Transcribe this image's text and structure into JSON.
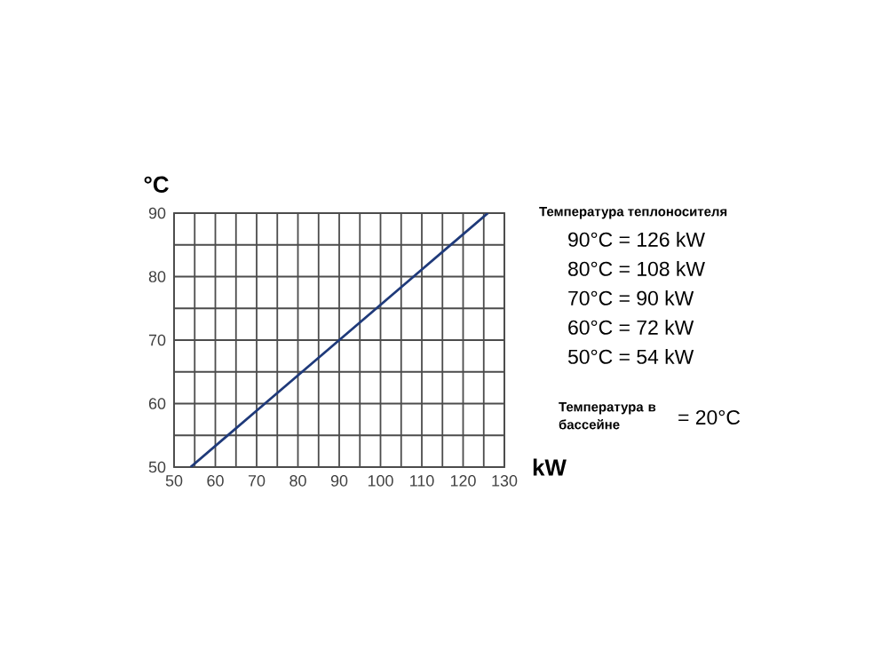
{
  "chart_data": {
    "type": "line",
    "xlabel": "kW",
    "ylabel": "°C",
    "x": [
      54,
      72,
      90,
      108,
      126
    ],
    "series": [
      {
        "color": "#1f3a7a",
        "values": [
          50,
          60,
          70,
          80,
          90
        ]
      }
    ],
    "xlim": [
      50,
      130
    ],
    "ylim": [
      50,
      90
    ],
    "xticks": [
      50,
      60,
      70,
      80,
      90,
      100,
      110,
      120,
      130
    ],
    "yticks": [
      50,
      60,
      70,
      80,
      90
    ],
    "grid": true,
    "marker": "none",
    "line_style": "solid",
    "annotations": [
      "Температура теплоносителя",
      "90°C = 126 kW",
      "80°C = 108 kW",
      "70°C =  90 kW",
      "60°C =  72 kW",
      "50°C =  54 kW",
      "Температура в бассейне",
      "= 20°C"
    ]
  }
}
